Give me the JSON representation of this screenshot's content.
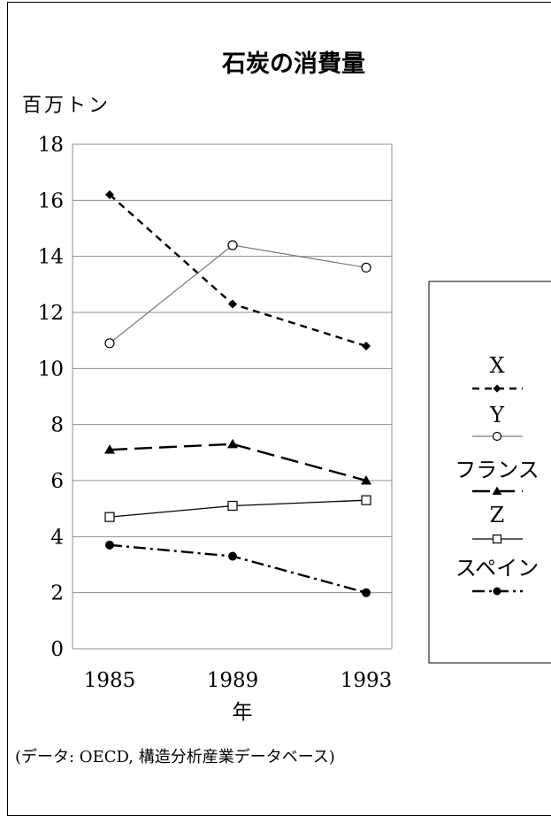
{
  "chart_data": {
    "type": "line",
    "title": "石炭の消費量",
    "ylabel": "百万トン",
    "xlabel": "年",
    "x": [
      "1985",
      "1989",
      "1993"
    ],
    "ylim": [
      0,
      18
    ],
    "yticks": [
      0,
      2,
      4,
      6,
      8,
      10,
      12,
      14,
      16,
      18
    ],
    "grid": true,
    "legend_position": "right",
    "series": [
      {
        "name": "X",
        "values": [
          16.2,
          12.3,
          10.8
        ],
        "marker": "diamond",
        "dash": "8,6",
        "width": 2.4,
        "color": "#000000"
      },
      {
        "name": "Y",
        "values": [
          10.9,
          14.4,
          13.6
        ],
        "marker": "circle-open",
        "dash": "",
        "width": 1.2,
        "color": "#777777"
      },
      {
        "name": "フランス",
        "values": [
          7.1,
          7.3,
          6.0
        ],
        "marker": "triangle",
        "dash": "20,8",
        "width": 2.4,
        "color": "#000000"
      },
      {
        "name": "Z",
        "values": [
          4.7,
          5.1,
          5.3
        ],
        "marker": "square-open",
        "dash": "",
        "width": 1.3,
        "color": "#000000"
      },
      {
        "name": "スペイン",
        "values": [
          3.7,
          3.3,
          2.0
        ],
        "marker": "circle",
        "dash": "14,5,3,5",
        "width": 2.4,
        "color": "#000000"
      }
    ],
    "source": "(データ: OECD, 構造分析産業データベース)"
  }
}
